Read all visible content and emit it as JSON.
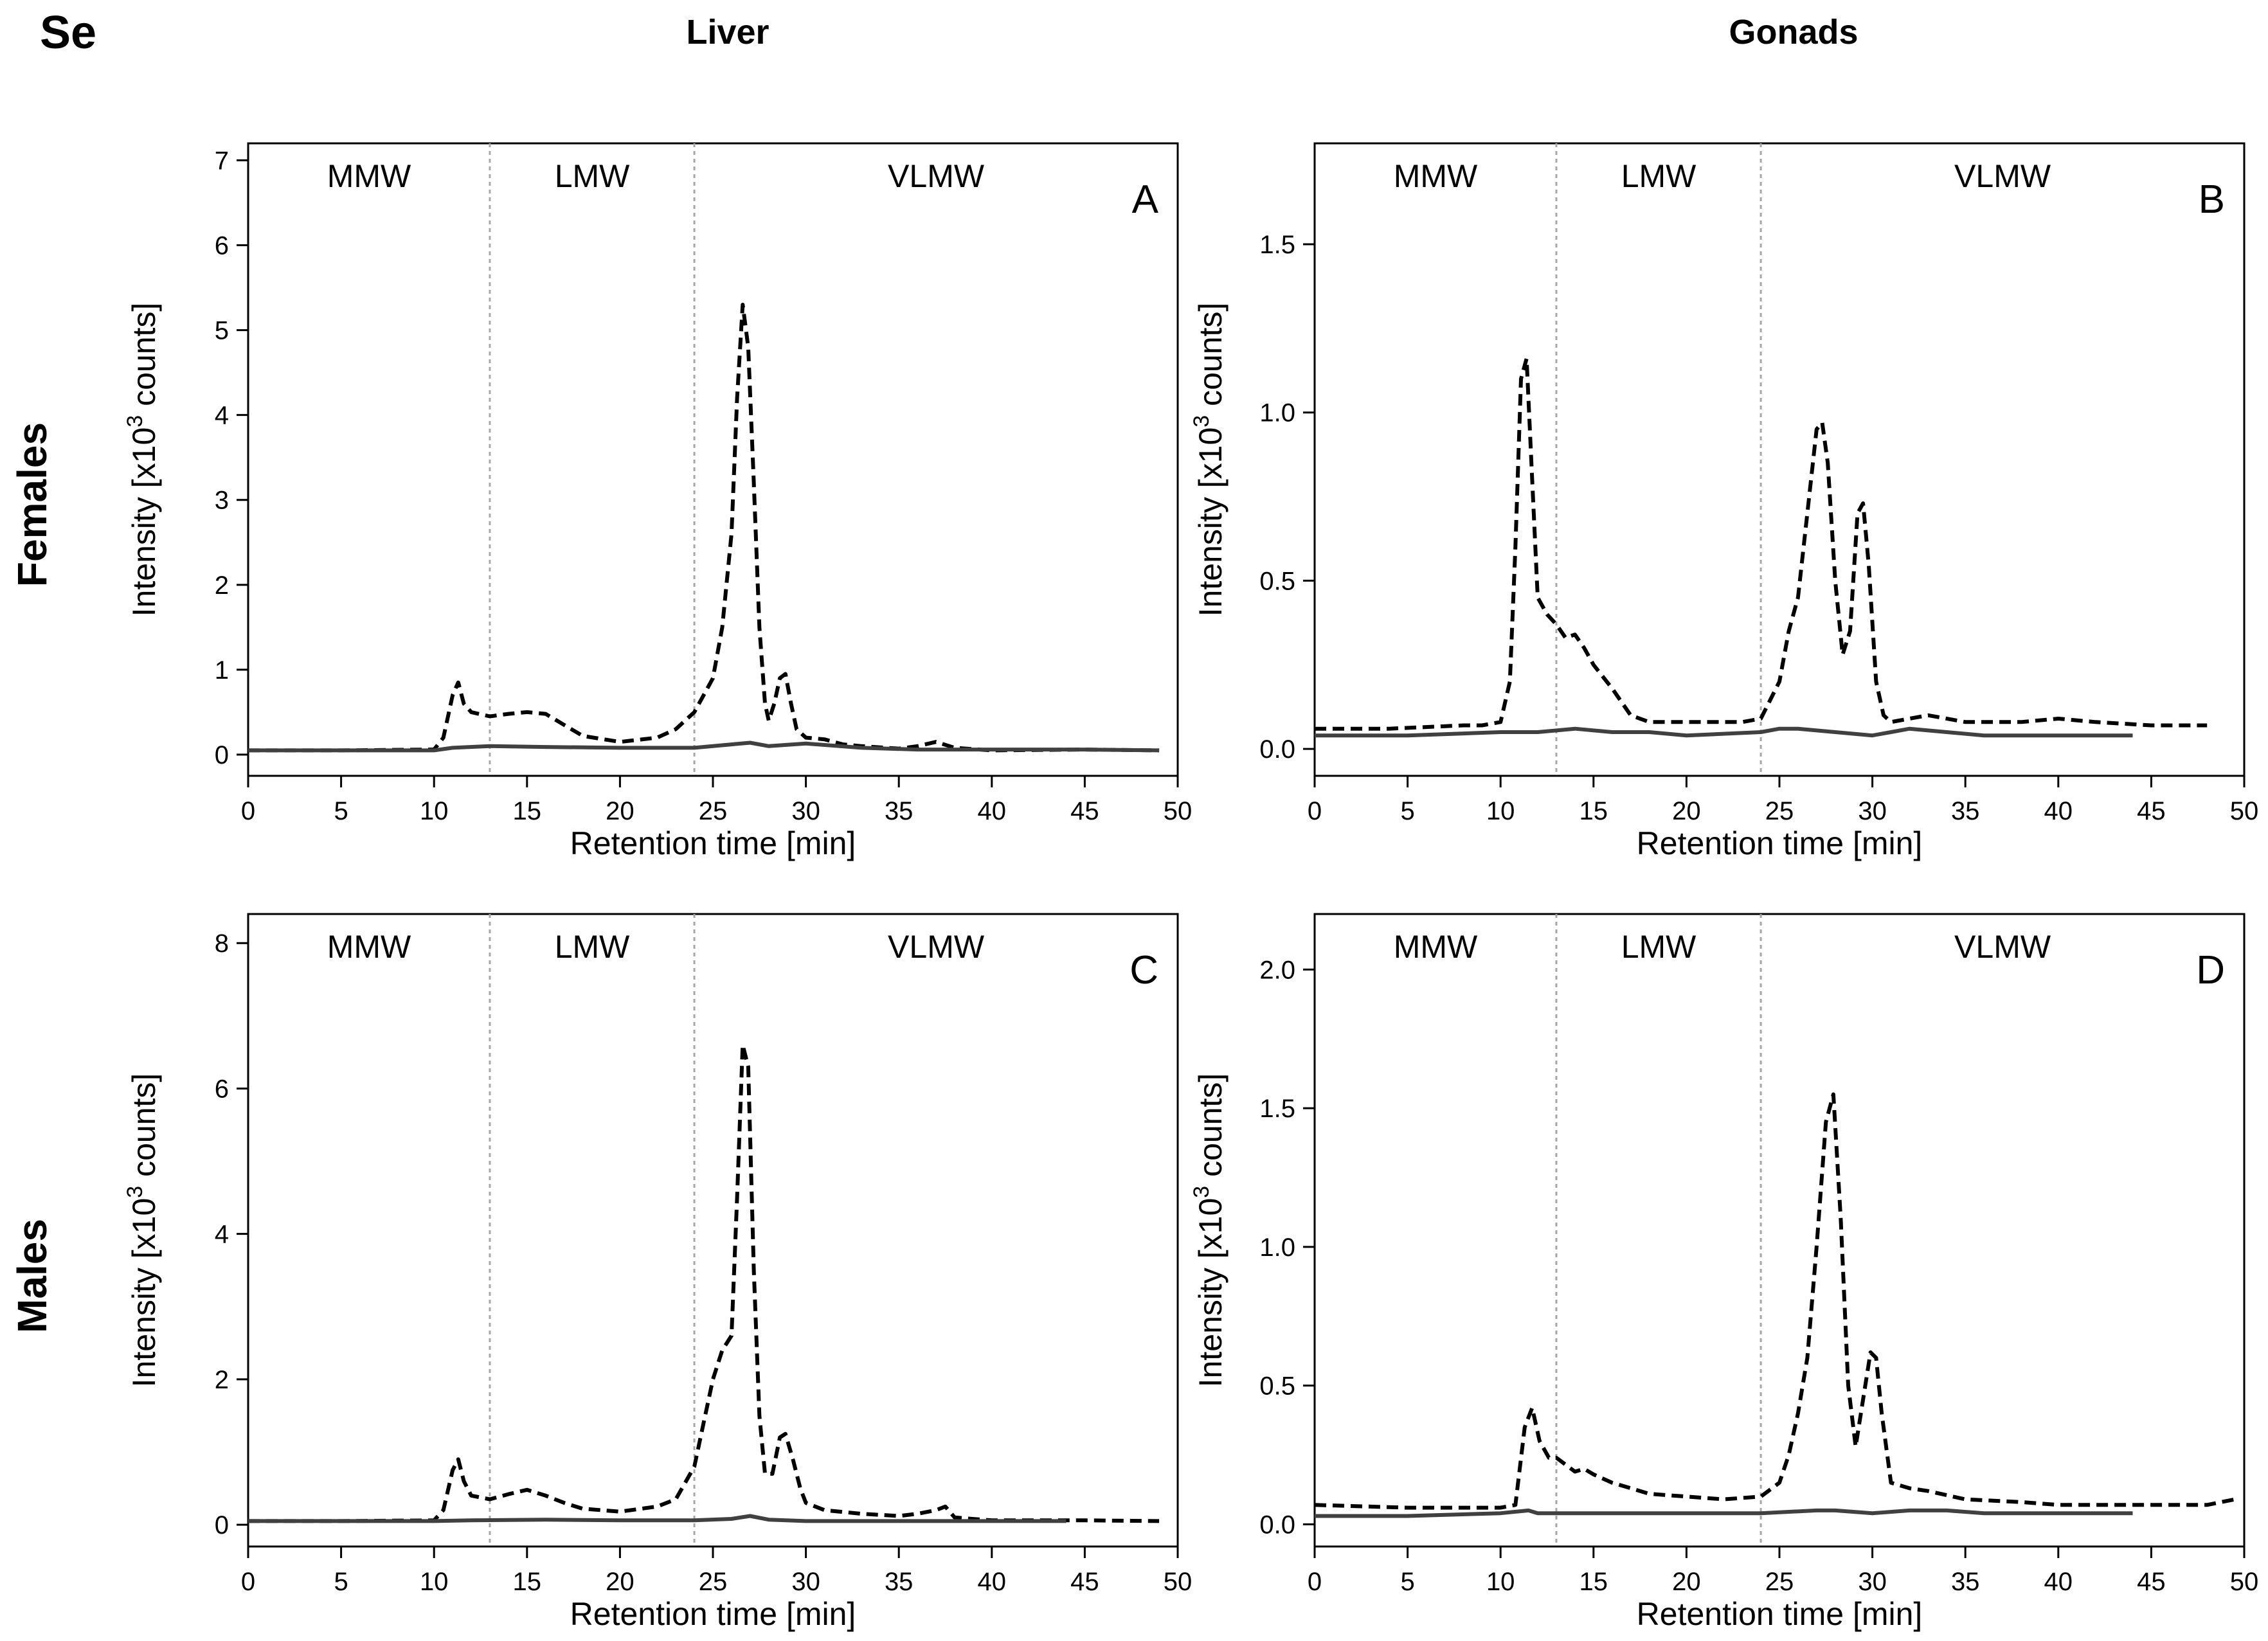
{
  "figure": {
    "element_label": "Se",
    "column_titles": [
      "Liver",
      "Gonads"
    ],
    "row_titles": [
      "Females",
      "Males"
    ]
  },
  "chart_data": [
    {
      "panel": "A",
      "type": "line",
      "xlabel": "Retention time [min]",
      "ylabel_prefix": "Intensity [x10",
      "ylabel_sup": "3",
      "ylabel_suffix": " counts]",
      "xlim": [
        0,
        50
      ],
      "ylim": [
        -0.25,
        7.2
      ],
      "xticks": [
        0,
        5,
        10,
        15,
        20,
        25,
        30,
        35,
        40,
        45,
        50
      ],
      "yticks": [
        0,
        1,
        2,
        3,
        4,
        5,
        6,
        7
      ],
      "ytick_labels": [
        "0",
        "1",
        "2",
        "3",
        "4",
        "5",
        "6",
        "7"
      ],
      "fraction_boundaries": [
        13,
        24
      ],
      "fractions": [
        {
          "label": "MMW",
          "x": 6.5
        },
        {
          "label": "LMW",
          "x": 18.5
        },
        {
          "label": "VLMW",
          "x": 37
        }
      ],
      "series": [
        {
          "style": "dashed",
          "x": [
            0,
            5,
            10,
            10.5,
            11,
            11.3,
            11.6,
            12,
            13,
            14,
            15,
            16,
            17,
            18,
            20,
            22,
            23,
            24,
            25,
            25.5,
            26,
            26.3,
            26.6,
            26.9,
            27.2,
            27.5,
            27.8,
            28,
            28.3,
            28.6,
            28.9,
            29.2,
            29.5,
            30,
            31,
            32,
            33,
            35,
            36,
            37,
            38,
            40,
            45,
            49
          ],
          "y": [
            0.05,
            0.05,
            0.06,
            0.2,
            0.7,
            0.85,
            0.6,
            0.5,
            0.45,
            0.48,
            0.5,
            0.48,
            0.35,
            0.22,
            0.15,
            0.2,
            0.3,
            0.5,
            0.9,
            1.5,
            2.6,
            4.2,
            5.3,
            4.8,
            3.2,
            1.5,
            0.6,
            0.4,
            0.6,
            0.9,
            0.95,
            0.6,
            0.3,
            0.2,
            0.18,
            0.12,
            0.1,
            0.07,
            0.1,
            0.15,
            0.08,
            0.05,
            0.06,
            0.05
          ]
        },
        {
          "style": "solid",
          "x": [
            0,
            10,
            11,
            13,
            16,
            20,
            24,
            26,
            27,
            28,
            30,
            33,
            36,
            40,
            45,
            49
          ],
          "y": [
            0.05,
            0.05,
            0.08,
            0.1,
            0.09,
            0.08,
            0.08,
            0.12,
            0.14,
            0.1,
            0.13,
            0.08,
            0.06,
            0.06,
            0.06,
            0.05
          ]
        }
      ]
    },
    {
      "panel": "B",
      "type": "line",
      "xlabel": "Retention time [min]",
      "ylabel_prefix": "Intensity [x10",
      "ylabel_sup": "3",
      "ylabel_suffix": " counts]",
      "xlim": [
        0,
        50
      ],
      "ylim": [
        -0.08,
        1.8
      ],
      "xticks": [
        0,
        5,
        10,
        15,
        20,
        25,
        30,
        35,
        40,
        45,
        50
      ],
      "yticks": [
        0,
        0.5,
        1.0,
        1.5
      ],
      "ytick_labels": [
        "0.0",
        "0.5",
        "1.0",
        "1.5"
      ],
      "fraction_boundaries": [
        13,
        24
      ],
      "fractions": [
        {
          "label": "MMW",
          "x": 6.5
        },
        {
          "label": "LMW",
          "x": 18.5
        },
        {
          "label": "VLMW",
          "x": 37
        }
      ],
      "series": [
        {
          "style": "dashed",
          "x": [
            0,
            4,
            8,
            9,
            10,
            10.5,
            10.8,
            11.1,
            11.4,
            11.7,
            12,
            12.5,
            13,
            13.5,
            14,
            14.5,
            15,
            16,
            17,
            18,
            20,
            22,
            23,
            24,
            25,
            25.5,
            26,
            26.5,
            27,
            27.3,
            27.6,
            28,
            28.4,
            28.8,
            29.2,
            29.5,
            29.8,
            30.2,
            30.6,
            31,
            32,
            33,
            35,
            38,
            40,
            42,
            45,
            48
          ],
          "y": [
            0.06,
            0.06,
            0.07,
            0.07,
            0.08,
            0.2,
            0.6,
            1.1,
            1.16,
            0.8,
            0.45,
            0.4,
            0.37,
            0.33,
            0.34,
            0.3,
            0.25,
            0.18,
            0.1,
            0.08,
            0.08,
            0.08,
            0.08,
            0.09,
            0.2,
            0.35,
            0.45,
            0.7,
            0.95,
            0.97,
            0.85,
            0.5,
            0.28,
            0.35,
            0.7,
            0.73,
            0.55,
            0.2,
            0.1,
            0.08,
            0.09,
            0.1,
            0.08,
            0.08,
            0.09,
            0.08,
            0.07,
            0.07
          ]
        },
        {
          "style": "solid",
          "x": [
            0,
            5,
            10,
            12,
            14,
            16,
            18,
            20,
            24,
            25,
            26,
            28,
            30,
            31,
            32,
            34,
            36,
            40,
            44
          ],
          "y": [
            0.04,
            0.04,
            0.05,
            0.05,
            0.06,
            0.05,
            0.05,
            0.04,
            0.05,
            0.06,
            0.06,
            0.05,
            0.04,
            0.05,
            0.06,
            0.05,
            0.04,
            0.04,
            0.04
          ]
        }
      ]
    },
    {
      "panel": "C",
      "type": "line",
      "xlabel": "Retention time [min]",
      "ylabel_prefix": "Intensity [x10",
      "ylabel_sup": "3",
      "ylabel_suffix": " counts]",
      "xlim": [
        0,
        50
      ],
      "ylim": [
        -0.3,
        8.4
      ],
      "xticks": [
        0,
        5,
        10,
        15,
        20,
        25,
        30,
        35,
        40,
        45,
        50
      ],
      "yticks": [
        0,
        2,
        4,
        6,
        8
      ],
      "ytick_labels": [
        "0",
        "2",
        "4",
        "6",
        "8"
      ],
      "fraction_boundaries": [
        13,
        24
      ],
      "fractions": [
        {
          "label": "MMW",
          "x": 6.5
        },
        {
          "label": "LMW",
          "x": 18.5
        },
        {
          "label": "VLMW",
          "x": 37
        }
      ],
      "series": [
        {
          "style": "dashed",
          "x": [
            0,
            5,
            10,
            10.5,
            11,
            11.3,
            11.6,
            12,
            13,
            14,
            15,
            16,
            17,
            18,
            20,
            22,
            23,
            24,
            24.5,
            25,
            25.5,
            26,
            26.3,
            26.6,
            26.9,
            27.2,
            27.5,
            27.8,
            28.2,
            28.6,
            28.9,
            29.3,
            29.7,
            30,
            31,
            33,
            35,
            36,
            37,
            37.5,
            38,
            40,
            45,
            49
          ],
          "y": [
            0.05,
            0.05,
            0.06,
            0.2,
            0.75,
            0.9,
            0.6,
            0.4,
            0.35,
            0.42,
            0.48,
            0.4,
            0.3,
            0.22,
            0.18,
            0.25,
            0.35,
            0.8,
            1.4,
            2.0,
            2.4,
            2.6,
            4.5,
            6.6,
            6.3,
            3.5,
            1.5,
            0.7,
            0.7,
            1.2,
            1.25,
            0.9,
            0.5,
            0.3,
            0.2,
            0.15,
            0.12,
            0.15,
            0.2,
            0.25,
            0.1,
            0.06,
            0.06,
            0.05
          ]
        },
        {
          "style": "solid",
          "x": [
            0,
            10,
            12,
            16,
            20,
            24,
            26,
            27,
            28,
            30,
            35,
            40,
            44
          ],
          "y": [
            0.05,
            0.05,
            0.06,
            0.07,
            0.06,
            0.06,
            0.08,
            0.12,
            0.07,
            0.05,
            0.05,
            0.05,
            0.05
          ]
        }
      ]
    },
    {
      "panel": "D",
      "type": "line",
      "xlabel": "Retention time [min]",
      "ylabel_prefix": "Intensity [x10",
      "ylabel_sup": "3",
      "ylabel_suffix": " counts]",
      "xlim": [
        0,
        50
      ],
      "ylim": [
        -0.08,
        2.2
      ],
      "xticks": [
        0,
        5,
        10,
        15,
        20,
        25,
        30,
        35,
        40,
        45,
        50
      ],
      "yticks": [
        0,
        0.5,
        1.0,
        1.5,
        2.0
      ],
      "ytick_labels": [
        "0.0",
        "0.5",
        "1.0",
        "1.5",
        "2.0"
      ],
      "fraction_boundaries": [
        13,
        24
      ],
      "fractions": [
        {
          "label": "MMW",
          "x": 6.5
        },
        {
          "label": "LMW",
          "x": 18.5
        },
        {
          "label": "VLMW",
          "x": 37
        }
      ],
      "series": [
        {
          "style": "dashed",
          "x": [
            0,
            5,
            10,
            10.8,
            11.3,
            11.7,
            12.1,
            12.6,
            13,
            14,
            14.5,
            15,
            16,
            18,
            20,
            22,
            24,
            25,
            25.5,
            26,
            26.5,
            27,
            27.5,
            27.9,
            28.3,
            28.7,
            29.1,
            29.5,
            29.9,
            30.2,
            30.5,
            31,
            32,
            33,
            35,
            38,
            40,
            42,
            45,
            48,
            49.5
          ],
          "y": [
            0.07,
            0.06,
            0.06,
            0.07,
            0.35,
            0.42,
            0.3,
            0.24,
            0.24,
            0.19,
            0.2,
            0.18,
            0.15,
            0.11,
            0.1,
            0.09,
            0.1,
            0.15,
            0.25,
            0.4,
            0.6,
            1.0,
            1.45,
            1.55,
            1.1,
            0.5,
            0.28,
            0.45,
            0.62,
            0.6,
            0.4,
            0.15,
            0.13,
            0.12,
            0.09,
            0.08,
            0.07,
            0.07,
            0.07,
            0.07,
            0.09
          ]
        },
        {
          "style": "solid",
          "x": [
            0,
            5,
            10,
            11.5,
            12,
            14,
            18,
            22,
            24,
            27,
            28,
            30,
            32,
            34,
            36,
            40,
            44
          ],
          "y": [
            0.03,
            0.03,
            0.04,
            0.05,
            0.04,
            0.04,
            0.04,
            0.04,
            0.04,
            0.05,
            0.05,
            0.04,
            0.05,
            0.05,
            0.04,
            0.04,
            0.04
          ]
        }
      ]
    }
  ]
}
